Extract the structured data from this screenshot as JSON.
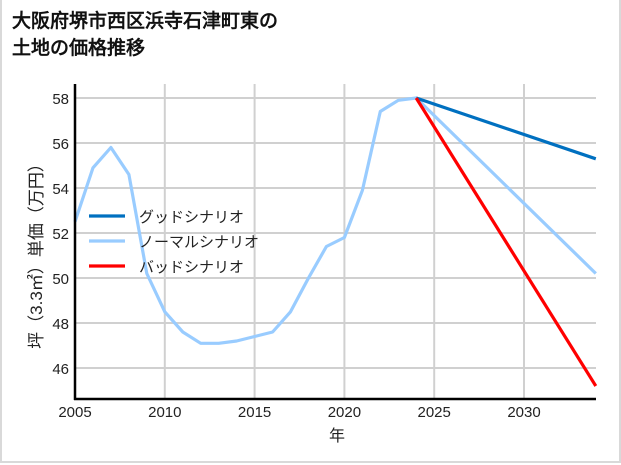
{
  "title_lines": [
    "大阪府堺市西区浜寺石津町東の",
    "土地の価格推移"
  ],
  "chart_data": {
    "type": "line",
    "title": "大阪府堺市西区浜寺石津町東の土地の価格推移",
    "xlabel": "年",
    "ylabel": "坪（3.3㎡）単価（万円）",
    "xlim": [
      2005,
      2034
    ],
    "ylim": [
      44.6,
      58.6
    ],
    "x_ticks": [
      2005,
      2010,
      2015,
      2020,
      2025,
      2030
    ],
    "y_ticks": [
      46,
      48,
      50,
      52,
      54,
      56,
      58
    ],
    "grid": true,
    "legend_position": "upper-left (inside, mid)",
    "series": [
      {
        "name": "グッドシナリオ",
        "color": "#0070c0",
        "x": [
          2024,
          2034
        ],
        "values": [
          58.0,
          55.3
        ]
      },
      {
        "name": "ノーマルシナリオ",
        "color": "#99ccff",
        "x": [
          2005,
          2006,
          2007,
          2008,
          2009,
          2010,
          2011,
          2012,
          2013,
          2014,
          2015,
          2016,
          2017,
          2018,
          2019,
          2020,
          2021,
          2022,
          2023,
          2024,
          2034
        ],
        "values": [
          52.5,
          54.9,
          55.8,
          54.6,
          50.2,
          48.5,
          47.6,
          47.1,
          47.1,
          47.2,
          47.4,
          47.6,
          48.5,
          50.0,
          51.4,
          51.8,
          53.9,
          57.4,
          57.9,
          58.0,
          50.2
        ]
      },
      {
        "name": "バッドシナリオ",
        "color": "#ff0000",
        "x": [
          2024,
          2034
        ],
        "values": [
          58.0,
          45.2
        ]
      }
    ]
  }
}
